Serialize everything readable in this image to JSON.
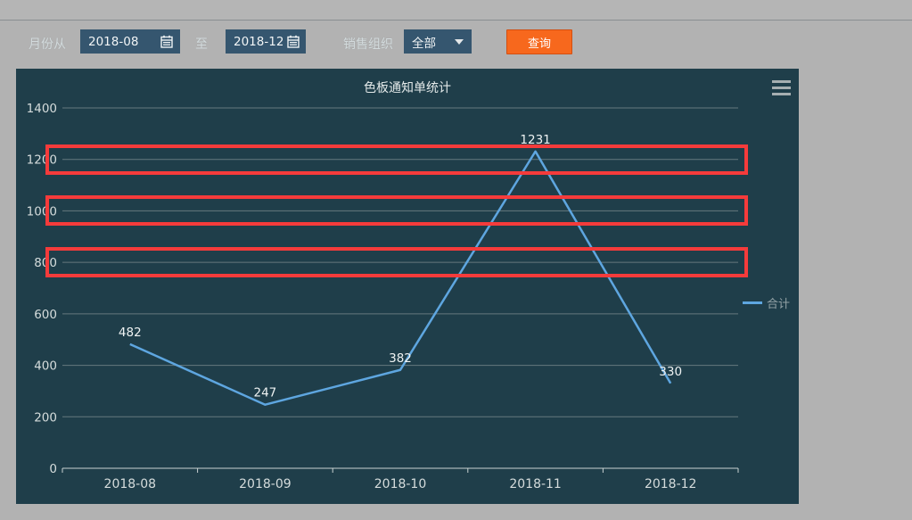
{
  "toolbar": {
    "month_from_label": "月份从",
    "date_from": "2018-08",
    "to_label": "至",
    "date_to": "2018-12",
    "sales_org_label": "销售组织",
    "sales_org_value": "全部",
    "query_button_label": "查询",
    "query_button_color": "#f7681d"
  },
  "chart_data": {
    "type": "line",
    "title": "色板通知单统计",
    "categories": [
      "2018-08",
      "2018-09",
      "2018-10",
      "2018-11",
      "2018-12"
    ],
    "series": [
      {
        "name": "合计",
        "values": [
          482,
          247,
          382,
          1231,
          330
        ],
        "color": "#5ea6e0"
      }
    ],
    "xlabel": "",
    "ylabel": "",
    "ylim": [
      0,
      1400
    ],
    "ytick_interval": 200,
    "grid": true,
    "legend_position": "right",
    "data_labels": true,
    "colors": {
      "panel_background": "#1f3e4a",
      "gridline": "#66797e",
      "axis_line": "#c9d2d2",
      "tick_label": "#d5dcdc",
      "data_label": "#eef2f2"
    },
    "annotations": {
      "highlighted_gridlines": [
        1200,
        1000,
        800
      ],
      "highlight_color": "#f53b3b"
    }
  }
}
